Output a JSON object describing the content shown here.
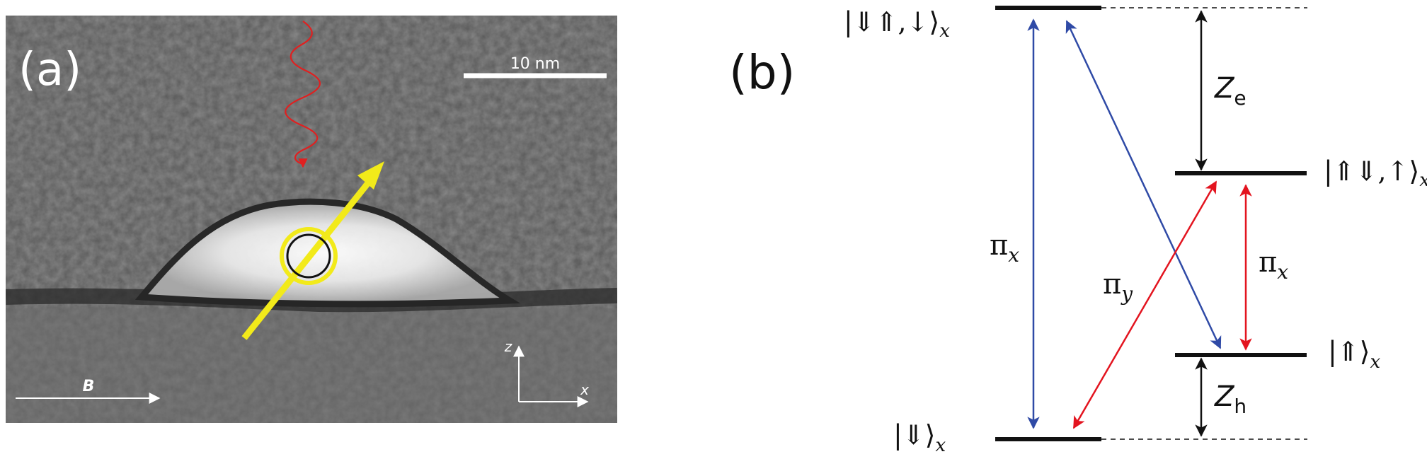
{
  "panel_a": {
    "label": "(a)",
    "scale_bar_label": "10 nm",
    "field_label": "B",
    "axis_z_label": "z",
    "axis_x_label": "x"
  },
  "panel_b": {
    "label": "(b)",
    "levels": {
      "excited_upper": "|⇓⇑,↓⟩",
      "excited_lower": "|⇑⇓,↑⟩",
      "ground_upper": "|⇑⟩",
      "ground_lower": "|⇓⟩",
      "subscript": "x"
    },
    "splittings": {
      "electron": {
        "main": "Z",
        "sub": "e"
      },
      "hole": {
        "main": "Z",
        "sub": "h"
      }
    },
    "transitions": {
      "pi_x_left": {
        "main": "π",
        "sub": "x"
      },
      "pi_y": {
        "main": "π",
        "sub": "y"
      },
      "pi_x_right": {
        "main": "π",
        "sub": "x"
      }
    }
  },
  "colors": {
    "blue_transition": "#2f4aa6",
    "red_transition": "#e3141f",
    "arrow_yellow": "#f2ea1a",
    "microwave_red": "#e02020",
    "level_black": "#111111"
  }
}
